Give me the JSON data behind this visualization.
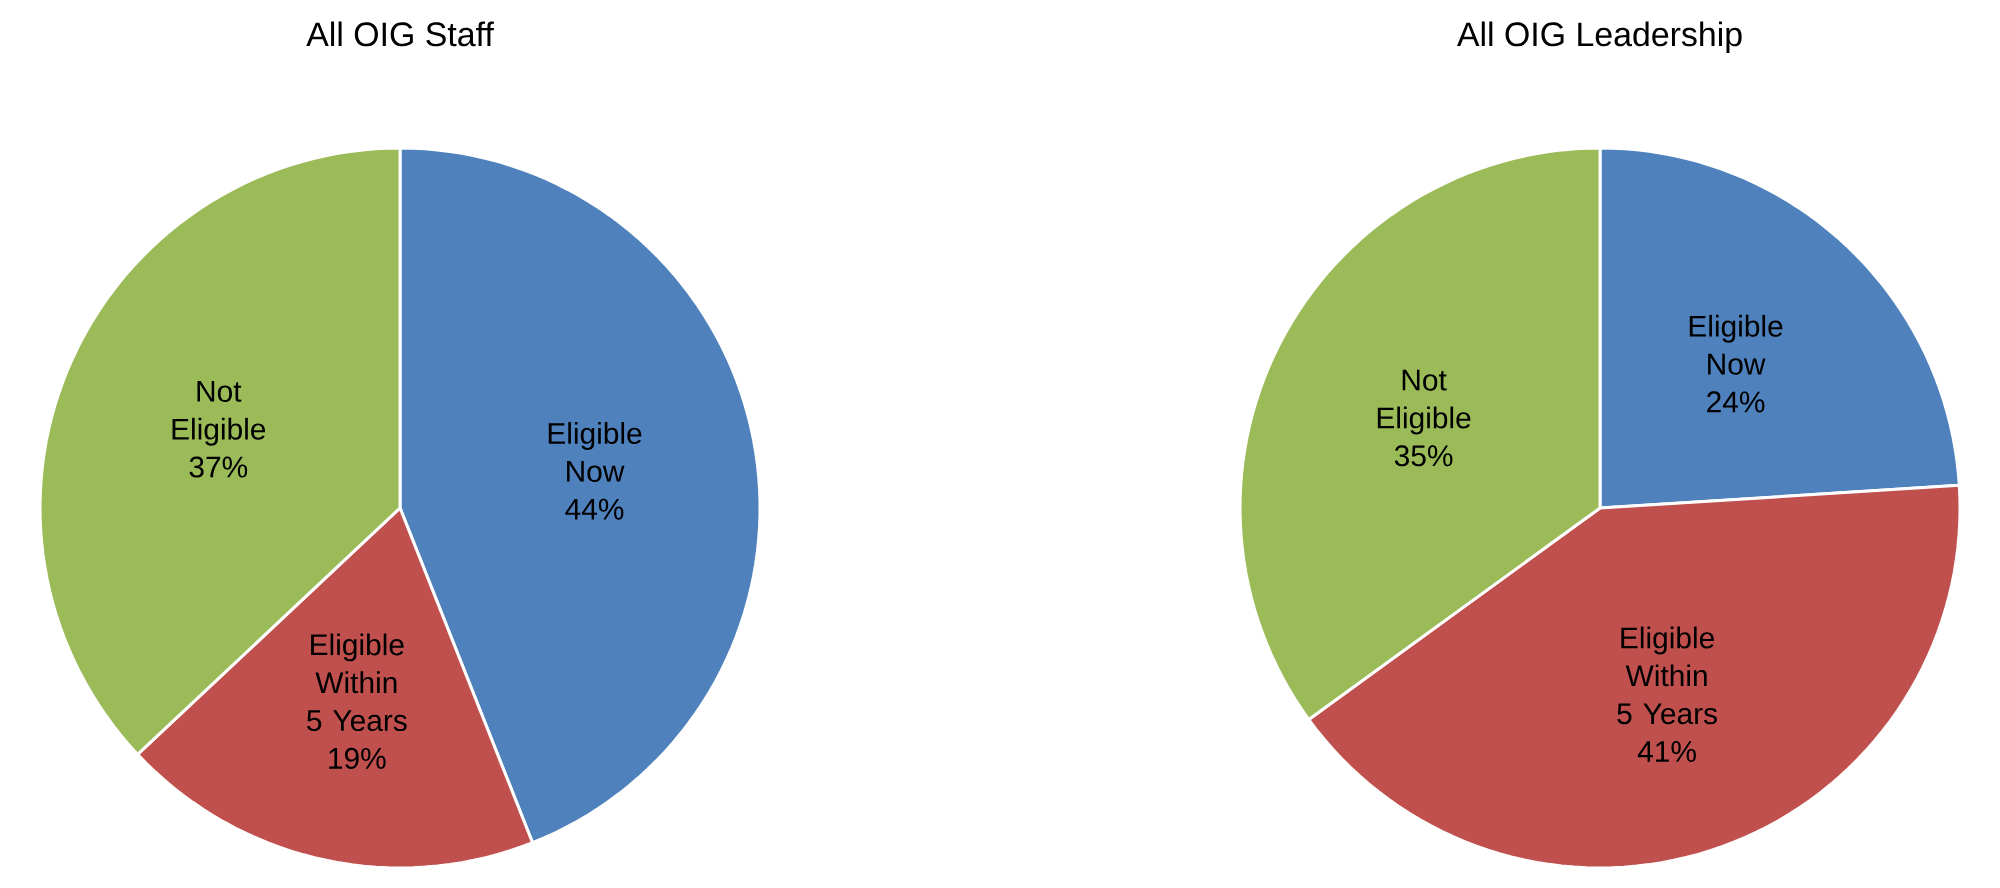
{
  "chart_data": [
    {
      "type": "pie",
      "title": "All OIG Staff",
      "categories": [
        "Eligible Now",
        "Eligible Within 5 Years",
        "Not Eligible"
      ],
      "values": [
        44,
        19,
        37
      ],
      "value_labels": [
        "44%",
        "19%",
        "37%"
      ],
      "colors": [
        "#4f81bd",
        "#c0504d",
        "#9bbb59"
      ]
    },
    {
      "type": "pie",
      "title": "All OIG Leadership",
      "categories": [
        "Eligible Now",
        "Eligible Within 5 Years",
        "Not Eligible"
      ],
      "values": [
        24,
        41,
        35
      ],
      "value_labels": [
        "24%",
        "41%",
        "35%"
      ],
      "colors": [
        "#4f81bd",
        "#c0504d",
        "#9bbb59"
      ]
    }
  ]
}
